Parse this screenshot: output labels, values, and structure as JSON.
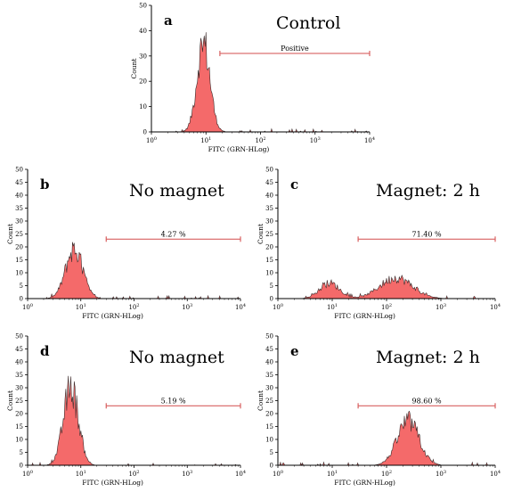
{
  "chart_data": [
    {
      "type": "area",
      "panel_letter": "a",
      "title": "Control",
      "xlabel": "FITC (GRN-HLog)",
      "ylabel": "Count",
      "xscale": "log",
      "xlim": [
        1,
        10000
      ],
      "ylim": [
        0,
        50
      ],
      "xticks": [
        "10",
        "10",
        "10",
        "10",
        "10"
      ],
      "xtick_exp": [
        "0",
        "1",
        "2",
        "3",
        "4"
      ],
      "yticks": [
        "0",
        "10",
        "20",
        "30",
        "40",
        "50"
      ],
      "gate": {
        "label": "Positive",
        "range": [
          18,
          10000
        ],
        "y": 31
      },
      "peaks": [
        {
          "center": 9,
          "width": 0.12,
          "height": 35
        }
      ],
      "fill_color": "#f46a6a",
      "gate_color": "#d86060"
    },
    {
      "type": "area",
      "panel_letter": "b",
      "title": "No magnet",
      "xlabel": "FITC (GRN-HLog)",
      "ylabel": "Count",
      "xscale": "log",
      "xlim": [
        1,
        10000
      ],
      "ylim": [
        0,
        50
      ],
      "xticks": [
        "10",
        "10",
        "10",
        "10",
        "10"
      ],
      "xtick_exp": [
        "0",
        "1",
        "2",
        "3",
        "4"
      ],
      "yticks": [
        "0",
        "5",
        "10",
        "15",
        "20",
        "25",
        "30",
        "35",
        "40",
        "45",
        "50"
      ],
      "gate": {
        "label": "4.27 %",
        "range": [
          30,
          10000
        ],
        "y": 23
      },
      "peaks": [
        {
          "center": 7.5,
          "width": 0.16,
          "height": 19
        }
      ],
      "fill_color": "#f46a6a",
      "gate_color": "#d86060"
    },
    {
      "type": "area",
      "panel_letter": "c",
      "title": "Magnet: 2 h",
      "xlabel": "FITC (GRN-HLog)",
      "ylabel": "Count",
      "xscale": "log",
      "xlim": [
        1,
        10000
      ],
      "ylim": [
        0,
        50
      ],
      "xticks": [
        "10",
        "10",
        "10",
        "10",
        "10"
      ],
      "xtick_exp": [
        "0",
        "1",
        "2",
        "3",
        "4"
      ],
      "yticks": [
        "0",
        "5",
        "10",
        "15",
        "20",
        "25",
        "30",
        "35",
        "40",
        "45",
        "50"
      ],
      "gate": {
        "label": "71.40 %",
        "range": [
          30,
          10000
        ],
        "y": 23
      },
      "peaks": [
        {
          "center": 9,
          "width": 0.18,
          "height": 6
        },
        {
          "center": 150,
          "width": 0.3,
          "height": 8
        }
      ],
      "fill_color": "#f46a6a",
      "gate_color": "#d86060"
    },
    {
      "type": "area",
      "panel_letter": "d",
      "title": "No magnet",
      "xlabel": "FITC (GRN-HLog)",
      "ylabel": "Count",
      "xscale": "log",
      "xlim": [
        1,
        10000
      ],
      "ylim": [
        0,
        50
      ],
      "xticks": [
        "10",
        "10",
        "10",
        "10",
        "10"
      ],
      "xtick_exp": [
        "0",
        "1",
        "2",
        "3",
        "4"
      ],
      "yticks": [
        "0",
        "5",
        "10",
        "15",
        "20",
        "25",
        "30",
        "35",
        "40",
        "45",
        "50"
      ],
      "gate": {
        "label": "5.19 %",
        "range": [
          30,
          10000
        ],
        "y": 23
      },
      "peaks": [
        {
          "center": 6.5,
          "width": 0.14,
          "height": 30
        }
      ],
      "fill_color": "#f46a6a",
      "gate_color": "#d86060"
    },
    {
      "type": "area",
      "panel_letter": "e",
      "title": "Magnet: 2 h",
      "xlabel": "FITC (GRN-HLog)",
      "ylabel": "Count",
      "xscale": "log",
      "xlim": [
        1,
        10000
      ],
      "ylim": [
        0,
        50
      ],
      "xticks": [
        "10",
        "10",
        "10",
        "10",
        "10"
      ],
      "xtick_exp": [
        "0",
        "1",
        "2",
        "3",
        "4"
      ],
      "yticks": [
        "0",
        "5",
        "10",
        "15",
        "20",
        "25",
        "30",
        "35",
        "40",
        "45",
        "50"
      ],
      "gate": {
        "label": "98.60 %",
        "range": [
          30,
          10000
        ],
        "y": 23
      },
      "peaks": [
        {
          "center": 250,
          "width": 0.2,
          "height": 17
        }
      ],
      "fill_color": "#f46a6a",
      "gate_color": "#d86060"
    }
  ]
}
